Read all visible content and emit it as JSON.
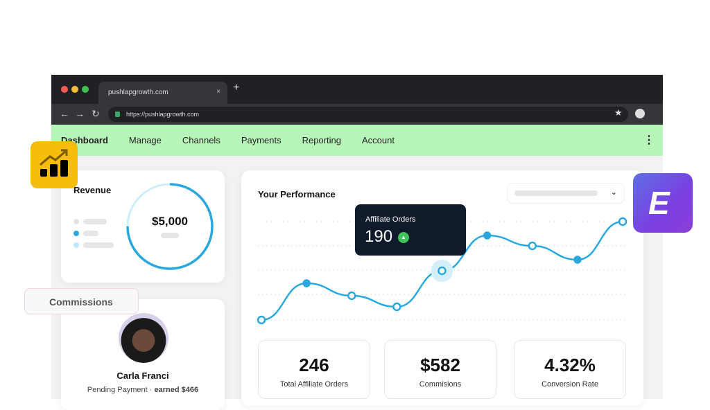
{
  "browser": {
    "tab_title": "pushlapgrowth.com",
    "url": "https://pushlapgrowth.com"
  },
  "menu": {
    "items": [
      "Dashboard",
      "Manage",
      "Channels",
      "Payments",
      "Reporting",
      "Account"
    ]
  },
  "revenue": {
    "title": "Revenue",
    "amount": "$5,000",
    "progress": 0.75
  },
  "commissions": {
    "label": "Commissions",
    "name": "Carla Franci",
    "status": "Pending Payment",
    "earned": "earned $466"
  },
  "performance": {
    "title": "Your Performance",
    "tooltip_label": "Affiliate Orders",
    "tooltip_value": "190"
  },
  "chart_data": {
    "type": "line",
    "values": [
      18,
      71,
      53,
      37,
      89,
      140,
      125,
      105,
      160
    ],
    "highlight_index": 4
  },
  "stats": [
    {
      "value": "246",
      "label": "Total Affiliate Orders"
    },
    {
      "value": "$582",
      "label": "Commisions"
    },
    {
      "value": "4.32%",
      "label": "Conversion Rate"
    }
  ],
  "colors": {
    "accent": "#29a8e0",
    "menu_bg": "#b8f5b8",
    "brand_purple": "#7b3fe0"
  }
}
